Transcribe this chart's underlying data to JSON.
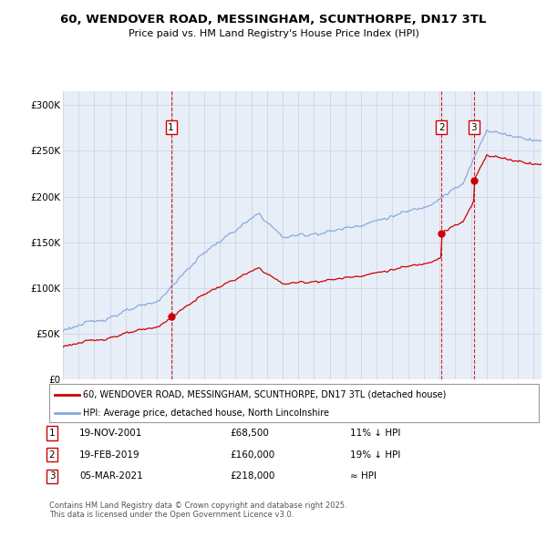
{
  "title": "60, WENDOVER ROAD, MESSINGHAM, SCUNTHORPE, DN17 3TL",
  "subtitle": "Price paid vs. HM Land Registry's House Price Index (HPI)",
  "ylabel_ticks": [
    "£0",
    "£50K",
    "£100K",
    "£150K",
    "£200K",
    "£250K",
    "£300K"
  ],
  "ytick_values": [
    0,
    50000,
    100000,
    150000,
    200000,
    250000,
    300000
  ],
  "ylim": [
    0,
    315000
  ],
  "xlim_start": 1995.0,
  "xlim_end": 2025.5,
  "legend_line1": "60, WENDOVER ROAD, MESSINGHAM, SCUNTHORPE, DN17 3TL (detached house)",
  "legend_line2": "HPI: Average price, detached house, North Lincolnshire",
  "transaction_labels": [
    {
      "num": 1,
      "date": "19-NOV-2001",
      "price": "£68,500",
      "note": "11% ↓ HPI"
    },
    {
      "num": 2,
      "date": "19-FEB-2019",
      "price": "£160,000",
      "note": "19% ↓ HPI"
    },
    {
      "num": 3,
      "date": "05-MAR-2021",
      "price": "£218,000",
      "note": "≈ HPI"
    }
  ],
  "footer": "Contains HM Land Registry data © Crown copyright and database right 2025.\nThis data is licensed under the Open Government Licence v3.0.",
  "transaction_dates": [
    2001.89,
    2019.12,
    2021.18
  ],
  "transaction_prices": [
    68500,
    160000,
    218000
  ],
  "sale_color": "#cc0000",
  "hpi_color": "#88aadd",
  "background_color": "#e8eef8",
  "grid_color": "#c8d0e0",
  "vline_color": "#cc0000"
}
